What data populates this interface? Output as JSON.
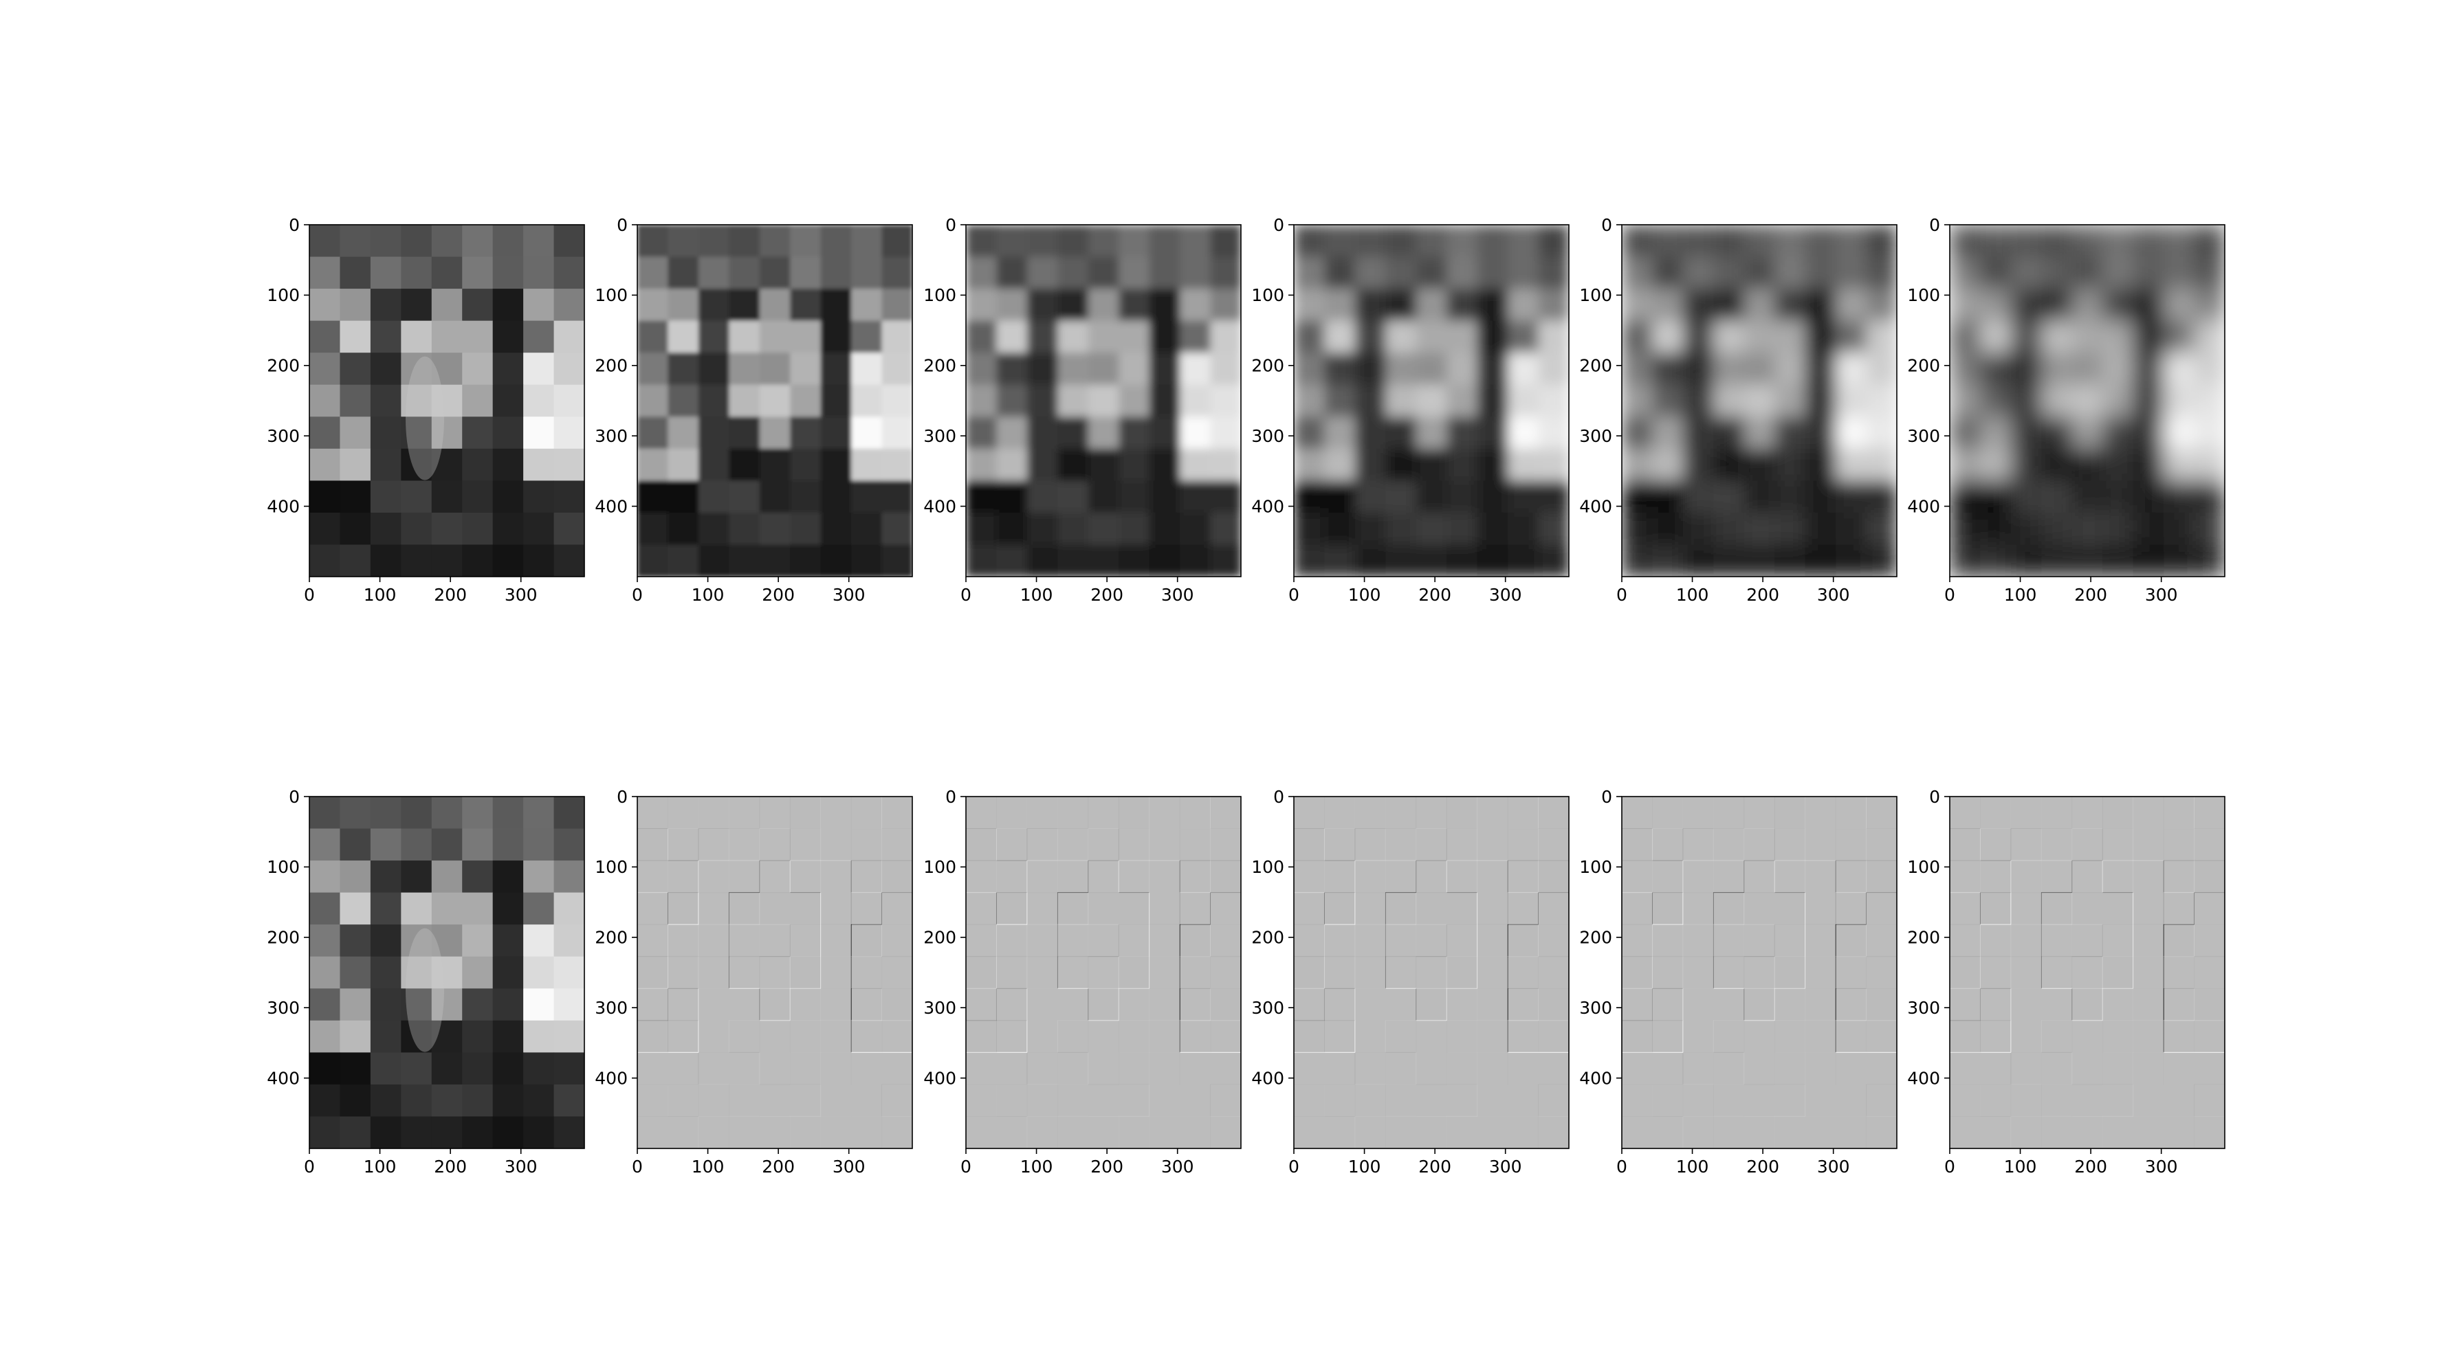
{
  "figure": {
    "type": "image-grid",
    "layout": {
      "rows": 2,
      "cols": 6
    },
    "colormap": "gray",
    "background": "#ffffff",
    "axis_color": "#000000"
  },
  "chart_data": [
    {
      "type": "heatmap",
      "row": 0,
      "col": 0,
      "variant": "original",
      "blur_level": 0,
      "xlim": [
        0,
        390
      ],
      "ylim": [
        500,
        0
      ],
      "xticks": [
        0,
        100,
        200,
        300
      ],
      "yticks": [
        0,
        100,
        200,
        300,
        400
      ],
      "grid": false
    },
    {
      "type": "heatmap",
      "row": 0,
      "col": 1,
      "variant": "lowpass",
      "blur_level": 1,
      "xlim": [
        0,
        390
      ],
      "ylim": [
        500,
        0
      ],
      "xticks": [
        0,
        100,
        200,
        300
      ],
      "yticks": [
        0,
        100,
        200,
        300,
        400
      ],
      "grid": false
    },
    {
      "type": "heatmap",
      "row": 0,
      "col": 2,
      "variant": "lowpass",
      "blur_level": 2,
      "xlim": [
        0,
        390
      ],
      "ylim": [
        500,
        0
      ],
      "xticks": [
        0,
        100,
        200,
        300
      ],
      "yticks": [
        0,
        100,
        200,
        300,
        400
      ],
      "grid": false
    },
    {
      "type": "heatmap",
      "row": 0,
      "col": 3,
      "variant": "lowpass",
      "blur_level": 3,
      "xlim": [
        0,
        390
      ],
      "ylim": [
        500,
        0
      ],
      "xticks": [
        0,
        100,
        200,
        300
      ],
      "yticks": [
        0,
        100,
        200,
        300,
        400
      ],
      "grid": false
    },
    {
      "type": "heatmap",
      "row": 0,
      "col": 4,
      "variant": "lowpass",
      "blur_level": 4,
      "xlim": [
        0,
        390
      ],
      "ylim": [
        500,
        0
      ],
      "xticks": [
        0,
        100,
        200,
        300
      ],
      "yticks": [
        0,
        100,
        200,
        300,
        400
      ],
      "grid": false
    },
    {
      "type": "heatmap",
      "row": 0,
      "col": 5,
      "variant": "lowpass",
      "blur_level": 5,
      "xlim": [
        0,
        390
      ],
      "ylim": [
        500,
        0
      ],
      "xticks": [
        0,
        100,
        200,
        300
      ],
      "yticks": [
        0,
        100,
        200,
        300,
        400
      ],
      "grid": false
    },
    {
      "type": "heatmap",
      "row": 1,
      "col": 0,
      "variant": "original",
      "blur_level": 0,
      "xlim": [
        0,
        390
      ],
      "ylim": [
        500,
        0
      ],
      "xticks": [
        0,
        100,
        200,
        300
      ],
      "yticks": [
        0,
        100,
        200,
        300,
        400
      ],
      "grid": false
    },
    {
      "type": "heatmap",
      "row": 1,
      "col": 1,
      "variant": "highpass",
      "blur_level": 1,
      "xlim": [
        0,
        390
      ],
      "ylim": [
        500,
        0
      ],
      "xticks": [
        0,
        100,
        200,
        300
      ],
      "yticks": [
        0,
        100,
        200,
        300,
        400
      ],
      "grid": false
    },
    {
      "type": "heatmap",
      "row": 1,
      "col": 2,
      "variant": "highpass",
      "blur_level": 2,
      "xlim": [
        0,
        390
      ],
      "ylim": [
        500,
        0
      ],
      "xticks": [
        0,
        100,
        200,
        300
      ],
      "yticks": [
        0,
        100,
        200,
        300,
        400
      ],
      "grid": false
    },
    {
      "type": "heatmap",
      "row": 1,
      "col": 3,
      "variant": "highpass",
      "blur_level": 3,
      "xlim": [
        0,
        390
      ],
      "ylim": [
        500,
        0
      ],
      "xticks": [
        0,
        100,
        200,
        300
      ],
      "yticks": [
        0,
        100,
        200,
        300,
        400
      ],
      "grid": false
    },
    {
      "type": "heatmap",
      "row": 1,
      "col": 4,
      "variant": "highpass",
      "blur_level": 4,
      "xlim": [
        0,
        390
      ],
      "ylim": [
        500,
        0
      ],
      "xticks": [
        0,
        100,
        200,
        300
      ],
      "yticks": [
        0,
        100,
        200,
        300,
        400
      ],
      "grid": false
    },
    {
      "type": "heatmap",
      "row": 1,
      "col": 5,
      "variant": "highpass",
      "blur_level": 5,
      "xlim": [
        0,
        390
      ],
      "ylim": [
        500,
        0
      ],
      "xticks": [
        0,
        100,
        200,
        300
      ],
      "yticks": [
        0,
        100,
        200,
        300,
        400
      ],
      "grid": false
    }
  ]
}
